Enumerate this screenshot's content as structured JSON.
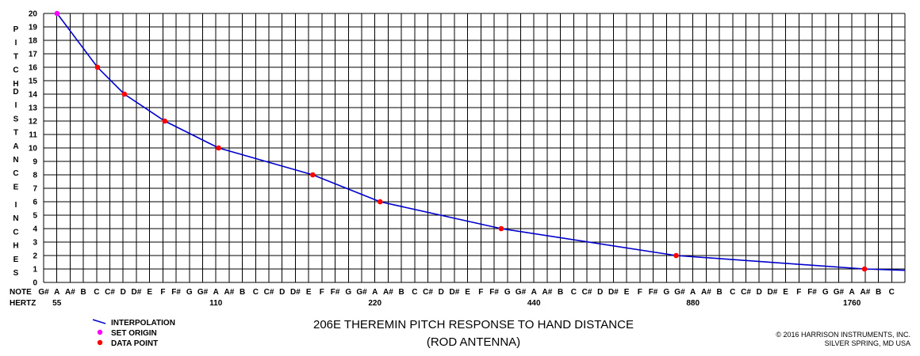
{
  "chart_data": {
    "type": "line",
    "title": "206E THEREMIN PITCH RESPONSE TO HAND DISTANCE",
    "subtitle": "(ROD ANTENNA)",
    "ylabel": "PITCH DISTANCE INCHES",
    "ylim": [
      0,
      20
    ],
    "y_ticks": [
      "20",
      "19",
      "18",
      "17",
      "16",
      "15",
      "14",
      "13",
      "12",
      "11",
      "10",
      "9",
      "8",
      "7",
      "6",
      "5",
      "4",
      "3",
      "2",
      "1",
      "0"
    ],
    "x_scale": "log2",
    "x_range_hz": [
      51.91,
      2093.0
    ],
    "note_row_label": "NOTE",
    "hertz_row_label": "HERTZ",
    "notes": [
      "G#",
      "A",
      "A#",
      "B",
      "C",
      "C#",
      "D",
      "D#",
      "E",
      "F",
      "F#",
      "G",
      "G#",
      "A",
      "A#",
      "B",
      "C",
      "C#",
      "D",
      "D#",
      "E",
      "F",
      "F#",
      "G",
      "G#",
      "A",
      "A#",
      "B",
      "C",
      "C#",
      "D",
      "D#",
      "E",
      "F",
      "F#",
      "G",
      "G#",
      "A",
      "A#",
      "B",
      "C",
      "C#",
      "D",
      "D#",
      "E",
      "F",
      "F#",
      "G",
      "G#",
      "A",
      "A#",
      "B",
      "C",
      "C#",
      "D",
      "D#",
      "E",
      "F",
      "F#",
      "G",
      "G#",
      "A",
      "A#",
      "B",
      "C"
    ],
    "hertz_labels": [
      {
        "note_index": 1,
        "text": "55"
      },
      {
        "note_index": 13,
        "text": "110"
      },
      {
        "note_index": 25,
        "text": "220"
      },
      {
        "note_index": 37,
        "text": "440"
      },
      {
        "note_index": 49,
        "text": "880"
      },
      {
        "note_index": 61,
        "text": "1760"
      }
    ],
    "series": [
      {
        "name": "INTERPOLATION",
        "kind": "line",
        "color": "#0000cc",
        "points": [
          [
            55,
            20
          ],
          [
            65.41,
            16
          ],
          [
            73.42,
            14
          ],
          [
            87.31,
            12
          ],
          [
            110,
            10
          ],
          [
            164.8,
            8
          ],
          [
            220,
            6
          ],
          [
            370,
            4
          ],
          [
            784,
            2
          ],
          [
            1760,
            1
          ],
          [
            2093,
            0.9
          ]
        ]
      },
      {
        "name": "SET ORIGIN",
        "kind": "marker",
        "color": "#ff00ff",
        "points": [
          [
            55,
            20
          ]
        ]
      },
      {
        "name": "DATA POINT",
        "kind": "marker",
        "color": "#ff0000",
        "points": [
          [
            65.41,
            16
          ],
          [
            73.42,
            14
          ],
          [
            87.31,
            12
          ],
          [
            110,
            10
          ],
          [
            164.8,
            8
          ],
          [
            220,
            6
          ],
          [
            370,
            4
          ],
          [
            784,
            2
          ],
          [
            1760,
            1
          ]
        ]
      }
    ],
    "grid": true,
    "legend_position": "bottom-left"
  },
  "credits": {
    "line1": "© 2016 HARRISON INSTRUMENTS, INC.",
    "line2": "SILVER SPRING, MD USA"
  }
}
